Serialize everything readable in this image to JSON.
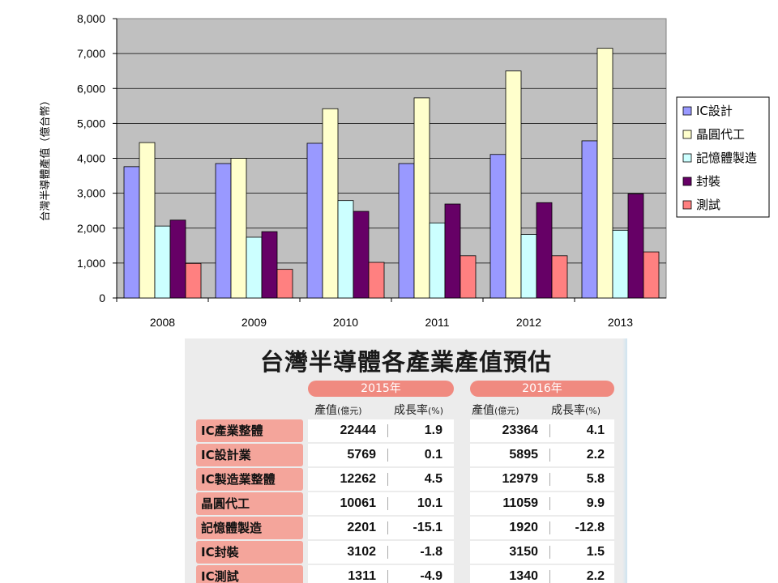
{
  "chart_data": {
    "type": "bar",
    "categories": [
      "2008",
      "2009",
      "2010",
      "2011",
      "2012",
      "2013"
    ],
    "series": [
      {
        "name": "IC設計",
        "color": "#9999ff",
        "values": [
          3760,
          3850,
          4430,
          3850,
          4110,
          4500
        ]
      },
      {
        "name": "晶圓代工",
        "color": "#ffffcc",
        "values": [
          4450,
          4000,
          5420,
          5730,
          6500,
          7150
        ]
      },
      {
        "name": "記憶體製造",
        "color": "#ccffff",
        "values": [
          2060,
          1740,
          2790,
          2150,
          1820,
          1940
        ]
      },
      {
        "name": "封裝",
        "color": "#660066",
        "values": [
          2230,
          1900,
          2480,
          2690,
          2730,
          2980
        ]
      },
      {
        "name": "測試",
        "color": "#ff8080",
        "values": [
          990,
          820,
          1020,
          1210,
          1210,
          1320
        ]
      }
    ],
    "yticks": [
      "0",
      "1,000",
      "2,000",
      "3,000",
      "4,000",
      "5,000",
      "6,000",
      "7,000",
      "8,000"
    ],
    "ylim": [
      0,
      8000
    ],
    "ylabel": "台灣半導體產值（億台幣）",
    "plot_bg": "#c0c0c0",
    "grid": true,
    "legend_position": "right"
  },
  "table": {
    "title": "台灣半導體各產業產值預估",
    "years": [
      "2015年",
      "2016年"
    ],
    "col_value_main": "產值",
    "col_value_unit": "(億元)",
    "col_growth_main": "成長率",
    "col_growth_unit": "(%)",
    "rows": [
      {
        "label": "IC產業整體",
        "v2015": "22444",
        "g2015": "1.9",
        "v2016": "23364",
        "g2016": "4.1"
      },
      {
        "label": "IC設計業",
        "v2015": "5769",
        "g2015": "0.1",
        "v2016": "5895",
        "g2016": "2.2"
      },
      {
        "label": "IC製造業整體",
        "v2015": "12262",
        "g2015": "4.5",
        "v2016": "12979",
        "g2016": "5.8"
      },
      {
        "label": "晶圓代工",
        "v2015": "10061",
        "g2015": "10.1",
        "v2016": "11059",
        "g2016": "9.9"
      },
      {
        "label": "記憶體製造",
        "v2015": "2201",
        "g2015": "-15.1",
        "v2016": "1920",
        "g2016": "-12.8"
      },
      {
        "label": "IC封裝",
        "v2015": "3102",
        "g2015": "-1.8",
        "v2016": "3150",
        "g2016": "1.5"
      },
      {
        "label": "IC測試",
        "v2015": "1311",
        "g2015": "-4.9",
        "v2016": "1340",
        "g2016": "2.2"
      }
    ]
  }
}
